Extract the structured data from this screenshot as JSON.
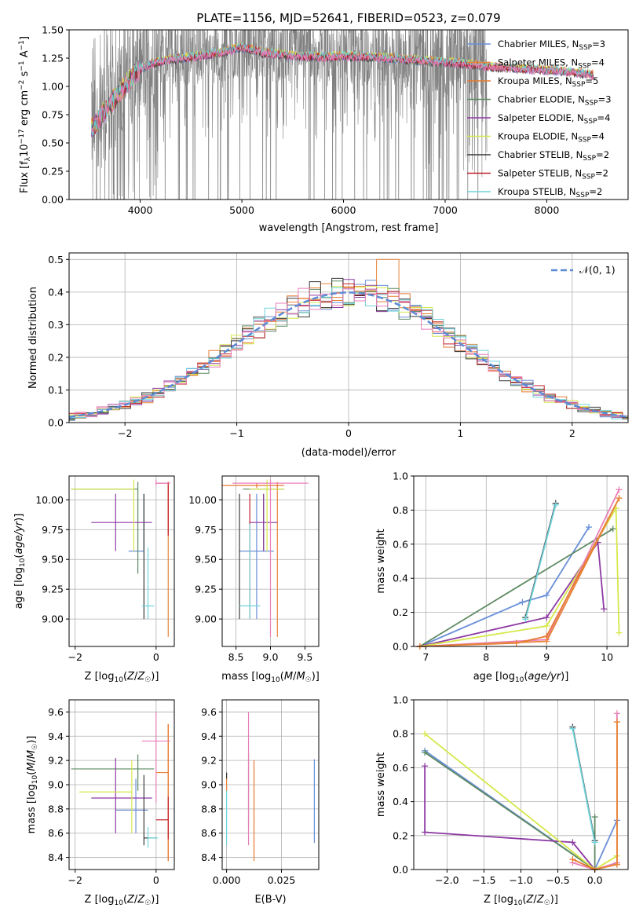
{
  "figure": {
    "title": "PLATE=1156, MJD=52641, FIBERID=0523, z=0.079"
  },
  "colors": {
    "chabrier_miles": "#6a8fd8",
    "salpeter_miles": "#e8853a",
    "kroupa_miles": "#e67a30",
    "chabrier_elodie": "#5e8a63",
    "salpeter_elodie": "#8e3aa3",
    "kroupa_elodie": "#d6e84a",
    "chabrier_stelib": "#3a3a3a",
    "salpeter_stelib": "#c0202a",
    "kroupa_stelib": "#6fd3dc",
    "pink": "#e97fb8",
    "data_gray": "#808080"
  },
  "chart_data": [
    {
      "id": "spectrum",
      "type": "line",
      "title": "PLATE=1156, MJD=52641, FIBERID=0523, z=0.079",
      "xlabel": "wavelength [Angstrom, rest frame]",
      "ylabel": "Flux [f_λ 10^-17 erg cm^-2 s^-1 A^-1]",
      "xlim": [
        3300,
        8800
      ],
      "ylim": [
        0,
        1.5
      ],
      "xticks": [
        "4000",
        "5000",
        "6000",
        "7000",
        "8000"
      ],
      "yticks": [
        "0.00",
        "0.25",
        "0.50",
        "0.75",
        "1.00",
        "1.25",
        "1.50"
      ],
      "legend_position": "top-right",
      "legend": [
        {
          "label": "Chabrier MILES, N",
          "sub": "SSP",
          "tail": "=3",
          "color": "#6a8fd8"
        },
        {
          "label": "Salpeter MILES, N",
          "sub": "SSP",
          "tail": "=4",
          "color": "#e8853a"
        },
        {
          "label": "Kroupa MILES, N",
          "sub": "SSP",
          "tail": "=5",
          "color": "#e67a30"
        },
        {
          "label": "Chabrier ELODIE, N",
          "sub": "SSP",
          "tail": "=3",
          "color": "#5e8a63"
        },
        {
          "label": "Salpeter ELODIE, N",
          "sub": "SSP",
          "tail": "=4",
          "color": "#8e3aa3"
        },
        {
          "label": "Kroupa ELODIE, N",
          "sub": "SSP",
          "tail": "=4",
          "color": "#d6e84a"
        },
        {
          "label": "Chabrier STELIB, N",
          "sub": "SSP",
          "tail": "=2",
          "color": "#3a3a3a"
        },
        {
          "label": "Salpeter STELIB, N",
          "sub": "SSP",
          "tail": "=2",
          "color": "#c0202a"
        },
        {
          "label": "Kroupa STELIB, N",
          "sub": "SSP",
          "tail": "=2",
          "color": "#6fd3dc"
        }
      ],
      "model_trend": {
        "x": [
          3520,
          3650,
          3800,
          3950,
          4100,
          4300,
          4500,
          4800,
          5000,
          5200,
          5500,
          5800,
          6000,
          6300,
          6600,
          6900,
          7100,
          7300,
          7500,
          7700,
          7900,
          8100,
          8300,
          8450
        ],
        "y": [
          0.62,
          0.78,
          0.95,
          1.12,
          1.2,
          1.24,
          1.26,
          1.3,
          1.35,
          1.3,
          1.27,
          1.26,
          1.27,
          1.26,
          1.24,
          1.22,
          1.21,
          1.19,
          1.17,
          1.16,
          1.15,
          1.14,
          1.12,
          1.1
        ]
      }
    },
    {
      "id": "residuals",
      "type": "histogram",
      "xlabel": "(data-model)/error",
      "ylabel": "Normed distribution",
      "xlim": [
        -2.5,
        2.5
      ],
      "ylim": [
        0,
        0.52
      ],
      "xticks": [
        "−2",
        "−1",
        "0",
        "1",
        "2"
      ],
      "yticks": [
        "0.0",
        "0.1",
        "0.2",
        "0.3",
        "0.4",
        "0.5"
      ],
      "bin_width": 0.1,
      "legend_position": "top-right",
      "reference_label": "𝒩(0, 1)",
      "reference_color": "#5b8bd4",
      "max_value_approx": 0.5
    },
    {
      "id": "age_vs_Z",
      "type": "errorbar",
      "xlabel": "Z [log10(Z/Z☉)]",
      "ylabel": "age [log10(age/yr)]",
      "xlim": [
        -2.15,
        0.45
      ],
      "ylim": [
        8.77,
        10.2
      ],
      "xticks": [
        "−2",
        "0"
      ],
      "yticks": [
        "9.00",
        "9.25",
        "9.50",
        "9.75",
        "10.00"
      ],
      "points": [
        {
          "x": -0.3,
          "y": 9.57,
          "xerr": [
            0.38,
            0.0
          ],
          "yerr": [
            9.57,
            10.05
          ],
          "color": "#6a8fd8"
        },
        {
          "x": 0.3,
          "y": 10.12,
          "xerr": [
            0.0,
            0.0
          ],
          "yerr": [
            8.85,
            10.15
          ],
          "color": "#e8853a"
        },
        {
          "x": 0.3,
          "y": 10.1,
          "xerr": [
            0.0,
            0.0
          ],
          "yerr": [
            9.7,
            10.15
          ],
          "color": "#e67a30"
        },
        {
          "x": -0.45,
          "y": 10.09,
          "xerr": [
            1.65,
            0.0
          ],
          "yerr": [
            9.38,
            10.15
          ],
          "color": "#5e8a63"
        },
        {
          "x": -1.0,
          "y": 9.81,
          "xerr": [
            0.6,
            0.9
          ],
          "yerr": [
            9.57,
            10.05
          ],
          "color": "#8e3aa3"
        },
        {
          "x": -0.55,
          "y": 10.09,
          "xerr": [
            1.55,
            0.0
          ],
          "yerr": [
            9.57,
            10.17
          ],
          "color": "#d6e84a"
        },
        {
          "x": -0.3,
          "y": 9.11,
          "xerr": [
            0.0,
            0.0
          ],
          "yerr": [
            9.0,
            10.05
          ],
          "color": "#3a3a3a"
        },
        {
          "x": 0.3,
          "y": 10.14,
          "xerr": [
            0.3,
            0.0
          ],
          "yerr": [
            9.7,
            10.15
          ],
          "color": "#c0202a"
        },
        {
          "x": -0.2,
          "y": 9.11,
          "xerr": [
            0.15,
            0.15
          ],
          "yerr": [
            9.0,
            9.6
          ],
          "color": "#6fd3dc"
        },
        {
          "x": 0.0,
          "y": 10.14,
          "xerr": [
            0.0,
            0.35
          ],
          "yerr": [
            10.12,
            10.17
          ],
          "color": "#e97fb8"
        }
      ]
    },
    {
      "id": "age_vs_mass",
      "type": "errorbar",
      "xlabel": "mass [log10(M/M☉)]",
      "ylabel": "",
      "xlim": [
        8.3,
        9.7
      ],
      "ylim": [
        8.77,
        10.2
      ],
      "xticks": [
        "8.5",
        "9.0",
        "9.5"
      ],
      "yticks": [
        "9.00",
        "9.25",
        "9.50",
        "9.75",
        "10.00"
      ],
      "points": [
        {
          "x": 8.8,
          "y": 9.57,
          "xerr": [
            0.25,
            0.25
          ],
          "yerr": [
            9.0,
            10.05
          ],
          "color": "#6a8fd8"
        },
        {
          "x": 9.1,
          "y": 10.12,
          "xerr": [
            0.0,
            0.0
          ],
          "yerr": [
            8.85,
            10.15
          ],
          "color": "#e8853a"
        },
        {
          "x": 8.8,
          "y": 10.12,
          "xerr": [
            0.55,
            0.4
          ],
          "yerr": [
            10.1,
            10.14
          ],
          "color": "#e67a30"
        },
        {
          "x": 8.9,
          "y": 10.09,
          "xerr": [
            0.3,
            0.3
          ],
          "yerr": [
            9.57,
            10.05
          ],
          "color": "#5e8a63"
        },
        {
          "x": 8.9,
          "y": 9.81,
          "xerr": [
            0.2,
            0.2
          ],
          "yerr": [
            9.57,
            10.05
          ],
          "color": "#8e3aa3"
        },
        {
          "x": 8.95,
          "y": 10.09,
          "xerr": [
            0.25,
            0.25
          ],
          "yerr": [
            9.57,
            10.17
          ],
          "color": "#d6e84a"
        },
        {
          "x": 8.55,
          "y": 9.11,
          "xerr": [
            0.0,
            0.0
          ],
          "yerr": [
            9.0,
            10.05
          ],
          "color": "#3a3a3a"
        },
        {
          "x": 8.7,
          "y": 9.57,
          "xerr": [
            0.0,
            0.0
          ],
          "yerr": [
            9.0,
            10.05
          ],
          "color": "#c0202a"
        },
        {
          "x": 8.7,
          "y": 9.11,
          "xerr": [
            0.15,
            0.15
          ],
          "yerr": [
            9.0,
            9.8
          ],
          "color": "#6fd3dc"
        },
        {
          "x": 9.0,
          "y": 10.14,
          "xerr": [
            0.55,
            0.55
          ],
          "yerr": [
            8.85,
            10.17
          ],
          "color": "#e97fb8"
        }
      ]
    },
    {
      "id": "mass_weight_vs_age",
      "type": "line",
      "xlabel": "age [log10(age/yr)]",
      "ylabel": "mass weight",
      "xlim": [
        6.8,
        10.35
      ],
      "ylim": [
        0,
        1
      ],
      "xticks": [
        "7",
        "8",
        "9",
        "10"
      ],
      "yticks": [
        "0.0",
        "0.2",
        "0.4",
        "0.6",
        "0.8",
        "1.0"
      ],
      "series": [
        {
          "color": "#6a8fd8",
          "x": [
            6.9,
            8.6,
            9.0,
            9.7
          ],
          "y": [
            0.0,
            0.26,
            0.3,
            0.7
          ]
        },
        {
          "color": "#5e8a63",
          "x": [
            6.9,
            10.1
          ],
          "y": [
            0.0,
            0.69
          ]
        },
        {
          "color": "#8e3aa3",
          "x": [
            6.9,
            9.0,
            9.85,
            9.95
          ],
          "y": [
            0.0,
            0.17,
            0.61,
            0.22
          ]
        },
        {
          "color": "#d6e84a",
          "x": [
            6.9,
            9.0,
            10.15,
            10.2
          ],
          "y": [
            0.0,
            0.12,
            0.81,
            0.08
          ]
        },
        {
          "color": "#e97fb8",
          "x": [
            6.9,
            9.0,
            10.2
          ],
          "y": [
            0.0,
            0.04,
            0.92
          ]
        },
        {
          "color": "#e67a30",
          "x": [
            6.9,
            8.5,
            9.0,
            10.2
          ],
          "y": [
            0.0,
            0.02,
            0.06,
            0.87
          ]
        },
        {
          "color": "#e8853a",
          "x": [
            6.9,
            9.0,
            10.2
          ],
          "y": [
            0.0,
            0.03,
            0.87
          ]
        },
        {
          "color": "#3a3a3a",
          "x": [
            8.65,
            9.15
          ],
          "y": [
            0.17,
            0.84
          ]
        },
        {
          "color": "#6fd3dc",
          "x": [
            8.65,
            9.15
          ],
          "y": [
            0.16,
            0.83
          ]
        }
      ]
    },
    {
      "id": "mass_vs_Z",
      "type": "errorbar",
      "xlabel": "Z [log10(Z/Z☉)]",
      "ylabel": "mass [log10(M/M☉)]",
      "xlim": [
        -2.15,
        0.45
      ],
      "ylim": [
        8.3,
        9.7
      ],
      "xticks": [
        "−2",
        "0"
      ],
      "yticks": [
        "8.4",
        "8.6",
        "8.8",
        "9.0",
        "9.2",
        "9.4",
        "9.6"
      ],
      "points": [
        {
          "x": -0.5,
          "y": 8.79,
          "xerr": [
            0.5,
            0.3
          ],
          "yerr": [
            8.6,
            9.05
          ],
          "color": "#6a8fd8"
        },
        {
          "x": 0.3,
          "y": 9.1,
          "xerr": [
            0.3,
            0.0
          ],
          "yerr": [
            8.37,
            9.5
          ],
          "color": "#e8853a"
        },
        {
          "x": 0.3,
          "y": 8.7,
          "xerr": [
            0.0,
            0.0
          ],
          "yerr": [
            8.37,
            9.5
          ],
          "color": "#e67a30"
        },
        {
          "x": -0.45,
          "y": 9.13,
          "xerr": [
            1.65,
            0.4
          ],
          "yerr": [
            8.95,
            9.25
          ],
          "color": "#5e8a63"
        },
        {
          "x": -1.0,
          "y": 8.89,
          "xerr": [
            0.6,
            0.9
          ],
          "yerr": [
            8.6,
            9.22
          ],
          "color": "#8e3aa3"
        },
        {
          "x": -0.6,
          "y": 8.94,
          "xerr": [
            1.3,
            0.0
          ],
          "yerr": [
            8.6,
            9.2
          ],
          "color": "#d6e84a"
        },
        {
          "x": -0.3,
          "y": 8.56,
          "xerr": [
            0.0,
            0.3
          ],
          "yerr": [
            8.5,
            9.08
          ],
          "color": "#3a3a3a"
        },
        {
          "x": 0.3,
          "y": 8.71,
          "xerr": [
            0.3,
            0.0
          ],
          "yerr": [
            8.55,
            8.9
          ],
          "color": "#c0202a"
        },
        {
          "x": -0.2,
          "y": 8.56,
          "xerr": [
            0.0,
            0.25
          ],
          "yerr": [
            8.48,
            8.65
          ],
          "color": "#6fd3dc"
        },
        {
          "x": 0.0,
          "y": 9.36,
          "xerr": [
            0.35,
            0.35
          ],
          "yerr": [
            8.85,
            9.6
          ],
          "color": "#e97fb8"
        }
      ]
    },
    {
      "id": "mass_vs_ebv",
      "type": "errorbar",
      "xlabel": "E(B-V)",
      "ylabel": "",
      "xlim": [
        -0.002,
        0.042
      ],
      "ylim": [
        8.3,
        9.7
      ],
      "xticks": [
        "0.000",
        "0.025"
      ],
      "yticks": [
        "8.4",
        "8.6",
        "8.8",
        "9.0",
        "9.2",
        "9.4",
        "9.6"
      ],
      "points": [
        {
          "x": 0.04,
          "y": 8.85,
          "yerr": [
            8.52,
            9.21
          ],
          "color": "#6a8fd8"
        },
        {
          "x": 0.0125,
          "y": 8.9,
          "yerr": [
            8.37,
            9.2
          ],
          "color": "#e67a30"
        },
        {
          "x": 0.01,
          "y": 8.95,
          "yerr": [
            8.65,
            9.25
          ],
          "color": "#5e8a63"
        },
        {
          "x": 0.01,
          "y": 9.3,
          "yerr": [
            8.5,
            9.6
          ],
          "color": "#e97fb8"
        },
        {
          "x": 0.0,
          "y": 8.8,
          "yerr": [
            8.5,
            9.05
          ],
          "color": "#6fd3dc"
        },
        {
          "x": 0.0,
          "y": 9.05,
          "yerr": [
            8.95,
            9.1
          ],
          "color": "#e8853a"
        },
        {
          "x": 0.0,
          "y": 9.1,
          "yerr": [
            9.05,
            9.1
          ],
          "color": "#3a3a3a"
        }
      ]
    },
    {
      "id": "mass_weight_vs_Z",
      "type": "line",
      "xlabel": "Z [log10(Z/Z☉)]",
      "ylabel": "mass weight",
      "xlim": [
        -2.45,
        0.45
      ],
      "ylim": [
        0,
        1
      ],
      "xticks": [
        "−2.0",
        "−1.5",
        "−1.0",
        "−0.5",
        "0.0"
      ],
      "yticks": [
        "0.0",
        "0.2",
        "0.4",
        "0.6",
        "0.8",
        "1.0"
      ],
      "series": [
        {
          "color": "#6a8fd8",
          "x": [
            -2.3,
            0.0,
            0.3
          ],
          "y": [
            0.7,
            0.0,
            0.29
          ]
        },
        {
          "color": "#5e8a63",
          "x": [
            -2.3,
            0.0,
            0.0
          ],
          "y": [
            0.69,
            0.0,
            0.31
          ]
        },
        {
          "color": "#8e3aa3",
          "x": [
            -2.3,
            -2.3,
            -0.3,
            0.0
          ],
          "y": [
            0.61,
            0.22,
            0.16,
            0.0
          ]
        },
        {
          "color": "#d6e84a",
          "x": [
            -2.3,
            0.0,
            0.3
          ],
          "y": [
            0.8,
            0.0,
            0.08
          ]
        },
        {
          "color": "#e97fb8",
          "x": [
            -0.3,
            0.0,
            0.3,
            0.3
          ],
          "y": [
            0.04,
            0.0,
            0.04,
            0.92
          ]
        },
        {
          "color": "#e67a30",
          "x": [
            -0.3,
            0.0,
            0.3,
            0.3
          ],
          "y": [
            0.06,
            0.0,
            0.03,
            0.87
          ]
        },
        {
          "color": "#e8853a",
          "x": [
            0.0,
            0.3,
            0.3
          ],
          "y": [
            0.0,
            0.03,
            0.87
          ]
        },
        {
          "color": "#3a3a3a",
          "x": [
            -0.3,
            0.0
          ],
          "y": [
            0.84,
            0.17
          ]
        },
        {
          "color": "#6fd3dc",
          "x": [
            -0.3,
            0.0
          ],
          "y": [
            0.83,
            0.16
          ]
        }
      ]
    }
  ]
}
